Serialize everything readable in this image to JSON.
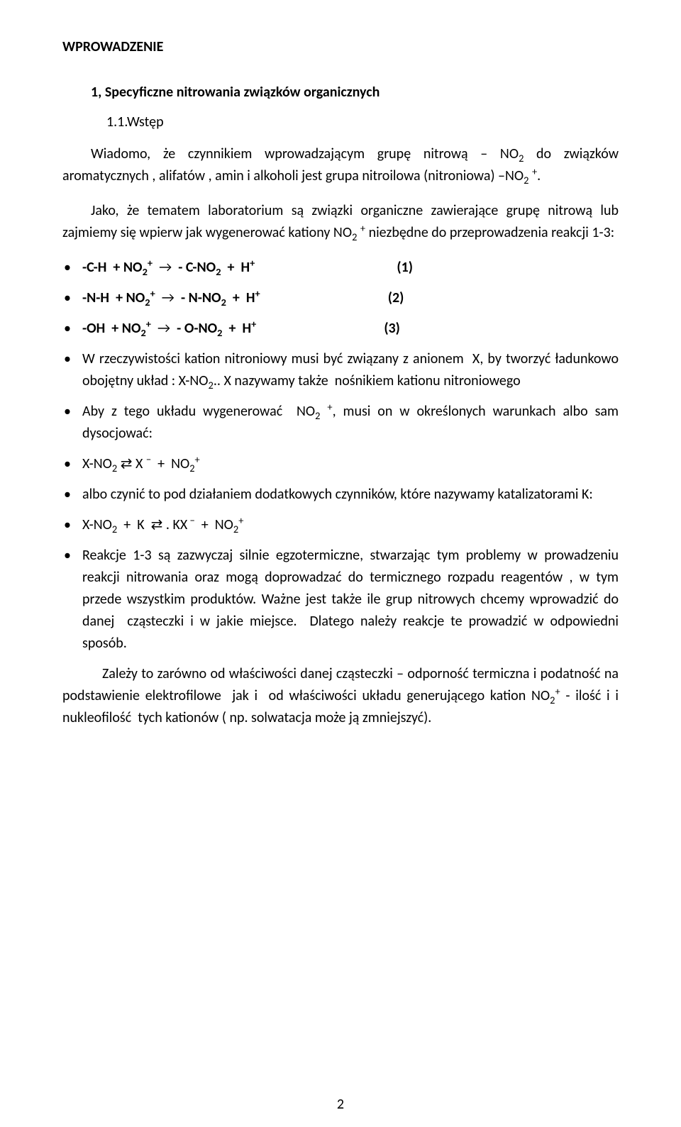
{
  "title": "WPROWADZENIE",
  "section1_title": "1, Specyficzne nitrowania związków organicznych",
  "section11_label": "1.1.Wstęp",
  "intro_html": "<span class=\"first-indent\"></span>Wiadomo, że czynnikiem wprowadzającym grupę nitrową – NO<sub>2</sub> do związków aromatycznych , alifatów , amin i alkoholi jest grupa nitroilowa (nitroniowa) –NO<sub>2</sub> <sup>+</sup>.",
  "intro2_html": "<span class=\"first-indent\"></span>Jako, że tematem laboratorium są związki organiczne zawierające grupę nitrową lub zajmiemy się wpierw jak wygenerować kationy NO<sub>2</sub> <sup>+</sup> niezbędne do przeprowadzenia reakcji 1-3:",
  "eq1_html": "<span class=\"bold\">-C-H &nbsp;+ NO<sub>2</sub><sup>+</sup></span> &nbsp;→ &nbsp;<span class=\"bold\">- C-NO<sub>2</sub> &nbsp;+ &nbsp;H<sup>+</sup></span>",
  "eq1_num": "(1)",
  "eq2_html": "<span class=\"bold\">-N-H &nbsp;+ NO<sub>2</sub><sup>+</sup></span> &nbsp;→ &nbsp;<span class=\"bold\">- N-NO<sub>2</sub> &nbsp;+ &nbsp;H<sup>+</sup></span>",
  "eq2_num": "(2)",
  "eq3_html": "<span class=\"bold\">-OH &nbsp;+ NO<sub>2</sub><sup>+</sup></span> &nbsp;→ &nbsp;<span class=\"bold\">- O-NO<sub>2</sub> &nbsp;+ &nbsp;H<sup>+</sup></span>",
  "eq3_num": "(3)",
  "bullet_wrzecz_html": "W rzeczywistości kation nitroniowy musi być związany z anionem &nbsp;X, by tworzyć ładunkowo obojętny układ : X-NO<sub>2</sub>.. X nazywamy także &nbsp;nośnikiem kationu nitroniowego",
  "bullet_aby_html": "Aby z tego układu wygenerować &nbsp;NO<sub>2</sub> <sup>+</sup>, musi on w określonych warunkach albo sam dysocjować:",
  "eq_dissoc_html": "X-NO<sub>2</sub> ⇄ X <sup>−</sup> &nbsp;+ &nbsp;NO<sub>2</sub><sup>+</sup>",
  "bullet_albo_html": "albo czynić to pod działaniem dodatkowych czynników, które nazywamy katalizatorami K:",
  "eq_dissoc2_html": "X-NO<sub>2</sub> &nbsp;+ &nbsp;K &nbsp;⇄ . KX<sup>&nbsp;−</sup> &nbsp;+ &nbsp;NO<sub>2</sub><sup>+</sup>",
  "bullet_reakcje_html": "Reakcje 1-3 są zazwyczaj silnie egzotermiczne, stwarzając tym problemy w prowadzeniu reakcji nitrowania oraz mogą doprowadzać do termicznego rozpadu reagentów , w tym przede wszystkim produktów. Ważne jest także ile grup nitrowych chcemy wprowadzić do danej &nbsp;cząsteczki i w jakie miejsce. &nbsp;Dlatego należy reakcje te prowadzić w odpowiedni sposób.",
  "para_zalezy_html": "Zależy to zarówno od właściwości danej cząsteczki – odporność termiczna i podatność na podstawienie elektrofilowe &nbsp;jak i &nbsp;od właściwości układu generującego kation NO<sub>2</sub><sup>+</sup> - ilość i i nukleofilość &nbsp;tych kationów ( np. solwatacja może ją zmniejszyć).",
  "page_number": "2"
}
